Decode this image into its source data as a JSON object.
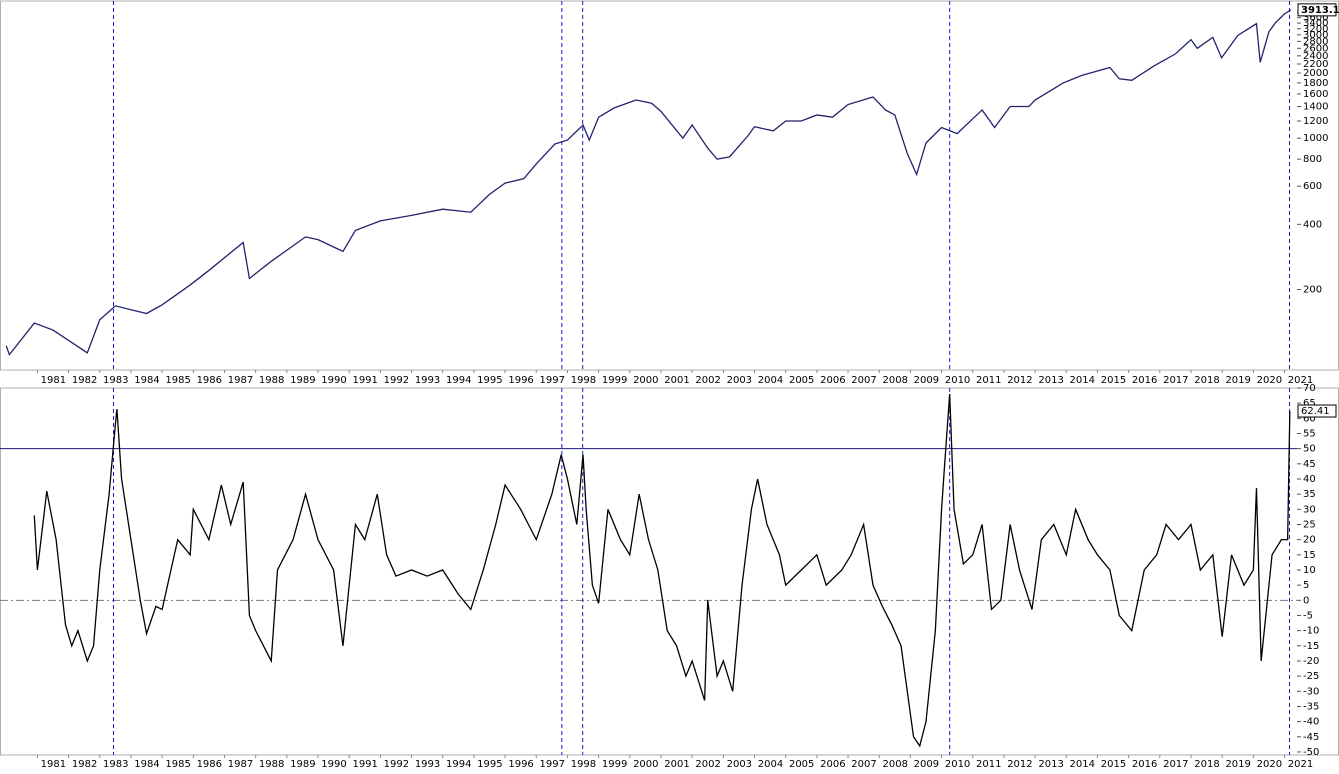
{
  "chart_data": [
    {
      "type": "line",
      "log_scale": true,
      "color": "#22226e",
      "xlim": [
        1979.8,
        2021.4
      ],
      "ylim": [
        85,
        4300
      ],
      "xticks": [
        1981,
        1982,
        1983,
        1984,
        1985,
        1986,
        1987,
        1988,
        1989,
        1990,
        1991,
        1992,
        1993,
        1994,
        1995,
        1996,
        1997,
        1998,
        1999,
        2000,
        2001,
        2002,
        2003,
        2004,
        2005,
        2006,
        2007,
        2008,
        2009,
        2010,
        2011,
        2012,
        2013,
        2014,
        2015,
        2016,
        2017,
        2018,
        2019,
        2020,
        2021
      ],
      "yticks": [
        200,
        400,
        600,
        800,
        1000,
        1200,
        1400,
        1600,
        1800,
        2000,
        2200,
        2400,
        2600,
        2800,
        3000,
        3200,
        3400,
        3600,
        3800
      ],
      "vlines": [
        1983.44,
        1997.82,
        1998.49,
        2010.26,
        2021.16
      ],
      "x": [
        1980.0,
        1980.1,
        1980.9,
        1981.5,
        1982.6,
        1983.0,
        1983.5,
        1984.5,
        1985.0,
        1985.9,
        1986.5,
        1987.6,
        1987.8,
        1988.5,
        1989.6,
        1990.0,
        1990.8,
        1991.2,
        1992.0,
        1993.0,
        1994.0,
        1994.9,
        1995.5,
        1996.0,
        1996.6,
        1997.0,
        1997.6,
        1998.0,
        1998.5,
        1998.7,
        1999.0,
        1999.5,
        2000.2,
        2000.7,
        2001.0,
        2001.7,
        2002.0,
        2002.5,
        2002.8,
        2003.2,
        2003.8,
        2004.0,
        2004.6,
        2005.0,
        2005.5,
        2006.0,
        2006.5,
        2007.0,
        2007.8,
        2008.2,
        2008.5,
        2008.9,
        2009.2,
        2009.5,
        2010.0,
        2010.5,
        2011.3,
        2011.7,
        2012.2,
        2012.8,
        2013.0,
        2013.9,
        2014.5,
        2015.4,
        2015.7,
        2016.1,
        2016.8,
        2017.5,
        2018.0,
        2018.2,
        2018.7,
        2018.98,
        2019.5,
        2020.1,
        2020.22,
        2020.5,
        2020.7,
        2021.0,
        2021.2
      ],
      "series": [
        {
          "color": "#22226e",
          "values": [
            110,
            100,
            140,
            130,
            102,
            145,
            168,
            155,
            170,
            210,
            245,
            330,
            225,
            270,
            350,
            340,
            300,
            375,
            415,
            440,
            470,
            455,
            550,
            620,
            650,
            760,
            940,
            980,
            1150,
            980,
            1250,
            1380,
            1500,
            1450,
            1330,
            1000,
            1150,
            900,
            800,
            820,
            1030,
            1130,
            1080,
            1200,
            1200,
            1280,
            1250,
            1430,
            1550,
            1350,
            1280,
            850,
            680,
            950,
            1120,
            1050,
            1350,
            1120,
            1400,
            1400,
            1500,
            1800,
            1950,
            2120,
            1880,
            1850,
            2150,
            2450,
            2850,
            2600,
            2920,
            2350,
            2980,
            3380,
            2240,
            3100,
            3400,
            3750,
            3913.1
          ]
        }
      ],
      "end_label": {
        "value": 3913.1,
        "label": "3913.10"
      }
    },
    {
      "type": "line",
      "color": "#000000",
      "xlim": [
        1979.8,
        2021.4
      ],
      "ylim": [
        -51,
        70
      ],
      "xticks": [
        1981,
        1982,
        1983,
        1984,
        1985,
        1986,
        1987,
        1988,
        1989,
        1990,
        1991,
        1992,
        1993,
        1994,
        1995,
        1996,
        1997,
        1998,
        1999,
        2000,
        2001,
        2002,
        2003,
        2004,
        2005,
        2006,
        2007,
        2008,
        2009,
        2010,
        2011,
        2012,
        2013,
        2014,
        2015,
        2016,
        2017,
        2018,
        2019,
        2020,
        2021
      ],
      "yticks": [
        -50,
        -45,
        -40,
        -35,
        -30,
        -25,
        -20,
        -15,
        -10,
        -5,
        0,
        5,
        10,
        15,
        20,
        25,
        30,
        35,
        40,
        45,
        50,
        55,
        60,
        65,
        70
      ],
      "vlines": [
        1983.44,
        1997.82,
        1998.49,
        2010.26,
        2021.16
      ],
      "hlines": [
        {
          "value": 50,
          "style": "solid",
          "color": "#1a1a80"
        },
        {
          "value": 0,
          "style": "dashdot",
          "color": "#777777"
        }
      ],
      "x": [
        1980.9,
        1981.0,
        1981.3,
        1981.6,
        1981.9,
        1982.1,
        1982.3,
        1982.6,
        1982.8,
        1983.0,
        1983.3,
        1983.5,
        1983.55,
        1983.7,
        1984.0,
        1984.3,
        1984.5,
        1984.8,
        1985.0,
        1985.5,
        1985.9,
        1986.0,
        1986.5,
        1986.9,
        1987.2,
        1987.6,
        1987.8,
        1988.0,
        1988.5,
        1988.7,
        1989.2,
        1989.6,
        1990.0,
        1990.5,
        1990.8,
        1991.2,
        1991.5,
        1991.9,
        1992.2,
        1992.5,
        1993.0,
        1993.5,
        1994.0,
        1994.5,
        1994.9,
        1995.3,
        1995.7,
        1996.0,
        1996.5,
        1997.0,
        1997.5,
        1997.8,
        1998.0,
        1998.3,
        1998.5,
        1998.6,
        1998.8,
        1999.0,
        1999.3,
        1999.7,
        2000.0,
        2000.3,
        2000.6,
        2000.9,
        2001.2,
        2001.5,
        2001.8,
        2002.0,
        2002.4,
        2002.5,
        2002.8,
        2003.0,
        2003.3,
        2003.6,
        2003.9,
        2004.1,
        2004.4,
        2004.8,
        2005.0,
        2005.5,
        2006.0,
        2006.3,
        2006.8,
        2007.1,
        2007.5,
        2007.8,
        2008.1,
        2008.4,
        2008.7,
        2008.9,
        2009.1,
        2009.3,
        2009.5,
        2009.8,
        2010.0,
        2010.1,
        2010.26,
        2010.4,
        2010.7,
        2011.0,
        2011.3,
        2011.6,
        2011.9,
        2012.2,
        2012.5,
        2012.9,
        2013.2,
        2013.6,
        2014.0,
        2014.3,
        2014.7,
        2015.0,
        2015.4,
        2015.7,
        2016.1,
        2016.5,
        2016.9,
        2017.2,
        2017.6,
        2018.0,
        2018.3,
        2018.7,
        2019.0,
        2019.3,
        2019.7,
        2020.0,
        2020.1,
        2020.25,
        2020.6,
        2020.9,
        2021.1,
        2021.17
      ],
      "series": [
        {
          "color": "#000000",
          "values": [
            28,
            10,
            36,
            20,
            -8,
            -15,
            -10,
            -20,
            -15,
            10,
            35,
            58,
            63,
            40,
            20,
            0,
            -11,
            -2,
            -3,
            20,
            15,
            30,
            20,
            38,
            25,
            39,
            -5,
            -10,
            -20,
            10,
            20,
            35,
            20,
            10,
            -15,
            25,
            20,
            35,
            15,
            8,
            10,
            8,
            10,
            2,
            -3,
            10,
            25,
            38,
            30,
            20,
            35,
            48,
            40,
            25,
            48,
            30,
            5,
            -1,
            30,
            20,
            15,
            35,
            20,
            10,
            -10,
            -15,
            -25,
            -20,
            -33,
            0,
            -25,
            -20,
            -30,
            5,
            30,
            40,
            25,
            15,
            5,
            10,
            15,
            5,
            10,
            15,
            25,
            5,
            -2,
            -8,
            -15,
            -30,
            -45,
            -48,
            -40,
            -10,
            30,
            45,
            68,
            30,
            12,
            15,
            25,
            -3,
            0,
            25,
            10,
            -3,
            20,
            25,
            15,
            30,
            20,
            15,
            10,
            -5,
            -10,
            10,
            15,
            25,
            20,
            25,
            10,
            15,
            -12,
            15,
            5,
            10,
            37,
            -20,
            15,
            20,
            20,
            62.41
          ]
        }
      ]
    }
  ]
}
